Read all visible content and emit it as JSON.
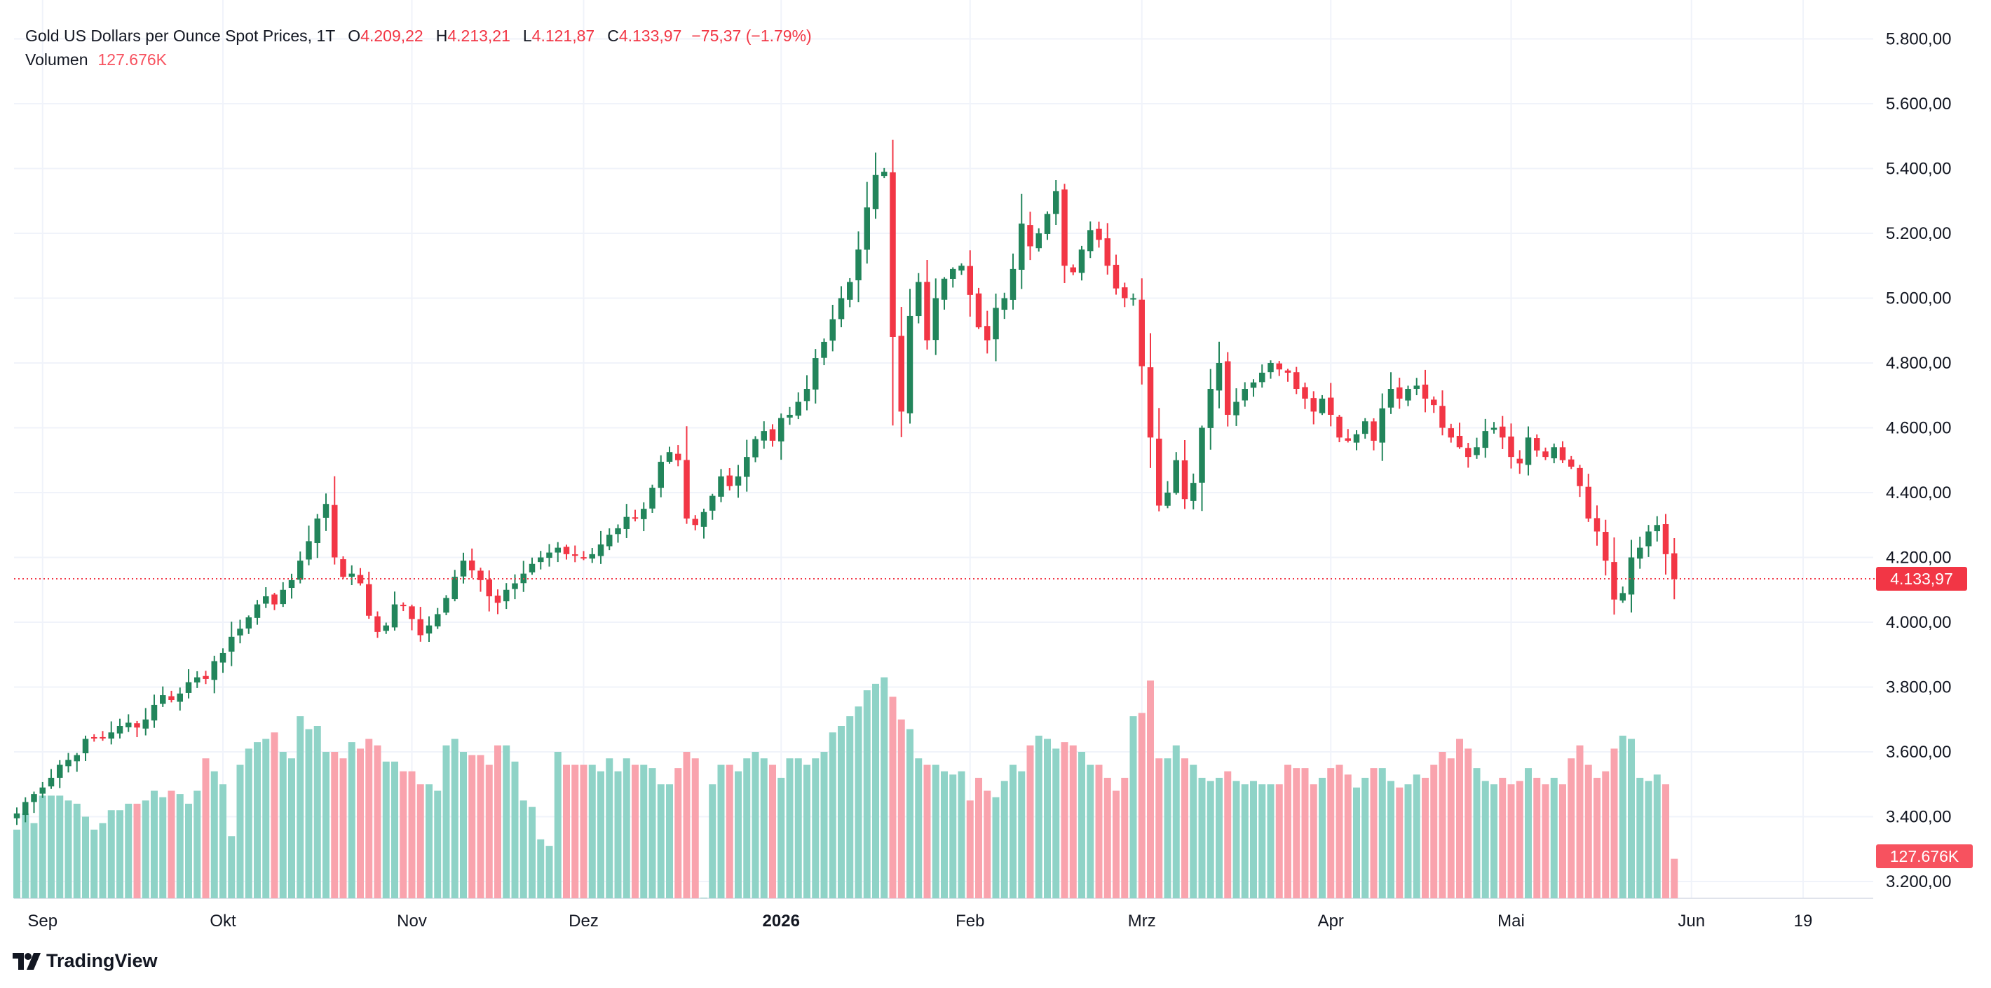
{
  "legend": {
    "symbol": "Gold US Dollars per Ounce Spot Prices, 1T",
    "o_label": "O",
    "o_value": "4.209,22",
    "h_label": "H",
    "h_value": "4.213,21",
    "l_label": "L",
    "l_value": "4.121,87",
    "c_label": "C",
    "c_value": "4.133,97",
    "change": "−75,37 (−1.79%)",
    "volume_label": "Volumen",
    "volume_value": "127.676K"
  },
  "price_badge": "4.133,97",
  "volume_badge": "127.676K",
  "watermark": "TradingView",
  "colors": {
    "up": "#22855B",
    "down": "#F23645",
    "volume_up": "#8FD3C7",
    "volume_down": "#F9A3AD",
    "grid": "#F0F3FA",
    "text": "#131722",
    "price_line": "#F23645"
  },
  "chart_data": {
    "type": "candlestick",
    "title": "Gold US Dollars per Ounce Spot Prices",
    "interval": "1T",
    "y_axis": {
      "range": [
        3150,
        5850
      ],
      "ticks": [
        3200,
        3400,
        3600,
        3800,
        4000,
        4200,
        4400,
        4600,
        4800,
        5000,
        5200,
        5400,
        5600,
        5800
      ],
      "tick_labels": [
        "3.200,00",
        "3.400,00",
        "3.600,00",
        "3.800,00",
        "4.000,00",
        "4.200,00",
        "4.400,00",
        "4.600,00",
        "4.800,00",
        "5.000,00",
        "5.200,00",
        "5.400,00",
        "5.600,00",
        "5.800,00"
      ]
    },
    "x_axis": {
      "labels": [
        {
          "text": "Sep",
          "index": 3,
          "bold": false
        },
        {
          "text": "Okt",
          "index": 24,
          "bold": false
        },
        {
          "text": "Nov",
          "index": 46,
          "bold": false
        },
        {
          "text": "Dez",
          "index": 66,
          "bold": false
        },
        {
          "text": "2026",
          "index": 89,
          "bold": true
        },
        {
          "text": "Feb",
          "index": 111,
          "bold": false
        },
        {
          "text": "Mrz",
          "index": 131,
          "bold": false
        },
        {
          "text": "Apr",
          "index": 153,
          "bold": false
        },
        {
          "text": "Mai",
          "index": 174,
          "bold": false
        },
        {
          "text": "Jun",
          "index": 195,
          "bold": false
        },
        {
          "text": "19",
          "index": 208,
          "bold": false
        }
      ]
    },
    "last_price": 4133.97,
    "closes": [
      3410,
      3445,
      3470,
      3490,
      3520,
      3560,
      3575,
      3590,
      3640,
      3645,
      3645,
      3660,
      3680,
      3690,
      3675,
      3700,
      3745,
      3775,
      3760,
      3780,
      3815,
      3830,
      3825,
      3880,
      3905,
      3955,
      3980,
      4015,
      4055,
      4080,
      4055,
      4100,
      4130,
      4190,
      4250,
      4320,
      4365,
      4200,
      4140,
      4150,
      4120,
      4020,
      3970,
      3990,
      4055,
      4050,
      4010,
      3960,
      3990,
      4025,
      4075,
      4140,
      4190,
      4160,
      4130,
      4080,
      4060,
      4100,
      4120,
      4150,
      4180,
      4200,
      4215,
      4230,
      4210,
      4205,
      4200,
      4210,
      4240,
      4270,
      4290,
      4325,
      4320,
      4350,
      4415,
      4495,
      4525,
      4500,
      4320,
      4300,
      4340,
      4390,
      4450,
      4420,
      4450,
      4510,
      4565,
      4590,
      4560,
      4630,
      4640,
      4680,
      4720,
      4815,
      4865,
      4935,
      5000,
      5050,
      5150,
      5280,
      5380,
      5390,
      4880,
      4650,
      4945,
      5050,
      4870,
      5000,
      5060,
      5090,
      5100,
      5010,
      4910,
      4870,
      4970,
      5000,
      5090,
      5230,
      5160,
      5200,
      5260,
      5330,
      5100,
      5080,
      5150,
      5210,
      5180,
      5100,
      5030,
      5000,
      5000,
      4790,
      4570,
      4360,
      4400,
      4500,
      4380,
      4430,
      4600,
      4720,
      4800,
      4640,
      4680,
      4720,
      4740,
      4770,
      4800,
      4780,
      4770,
      4720,
      4690,
      4650,
      4690,
      4640,
      4570,
      4560,
      4580,
      4620,
      4560,
      4660,
      4720,
      4690,
      4720,
      4730,
      4690,
      4670,
      4600,
      4570,
      4540,
      4510,
      4540,
      4590,
      4600,
      4570,
      4510,
      4490,
      4570,
      4530,
      4510,
      4540,
      4500,
      4480,
      4420,
      4320,
      4280,
      4190,
      4070,
      4090,
      4200,
      4230,
      4280,
      4300,
      4210,
      4134
    ],
    "volumes": [
      3360,
      3410,
      3380,
      3465,
      3465,
      3465,
      3450,
      3440,
      3400,
      3360,
      3380,
      3420,
      3420,
      3440,
      3440,
      3450,
      3480,
      3460,
      3480,
      3470,
      3440,
      3480,
      3580,
      3540,
      3500,
      3340,
      3560,
      3610,
      3630,
      3640,
      3660,
      3600,
      3580,
      3710,
      3670,
      3680,
      3600,
      3600,
      3580,
      3630,
      3610,
      3640,
      3620,
      3570,
      3570,
      3540,
      3540,
      3500,
      3500,
      3480,
      3620,
      3640,
      3600,
      3590,
      3590,
      3560,
      3620,
      3620,
      3570,
      3450,
      3430,
      3330,
      3310,
      3600,
      3560,
      3560,
      3560,
      3560,
      3540,
      3580,
      3540,
      3580,
      3560,
      3560,
      3550,
      3500,
      3500,
      3550,
      3600,
      3580,
      3150,
      3500,
      3560,
      3560,
      3540,
      3580,
      3600,
      3580,
      3560,
      3520,
      3580,
      3580,
      3560,
      3580,
      3600,
      3660,
      3680,
      3710,
      3740,
      3790,
      3810,
      3830,
      3770,
      3700,
      3670,
      3580,
      3560,
      3560,
      3540,
      3530,
      3540,
      3450,
      3520,
      3480,
      3460,
      3510,
      3560,
      3540,
      3620,
      3650,
      3640,
      3610,
      3630,
      3620,
      3600,
      3560,
      3560,
      3520,
      3480,
      3520,
      3710,
      3720,
      3820,
      3580,
      3580,
      3620,
      3580,
      3560,
      3520,
      3510,
      3520,
      3540,
      3510,
      3500,
      3510,
      3500,
      3500,
      3500,
      3560,
      3550,
      3550,
      3500,
      3520,
      3550,
      3560,
      3530,
      3490,
      3520,
      3550,
      3550,
      3510,
      3490,
      3500,
      3530,
      3520,
      3560,
      3600,
      3580,
      3640,
      3610,
      3550,
      3510,
      3500,
      3520,
      3500,
      3510,
      3550,
      3520,
      3500,
      3520,
      3500,
      3580,
      3620,
      3560,
      3520,
      3540,
      3610,
      3650,
      3640,
      3520,
      3510,
      3530,
      3500,
      3270
    ],
    "volume_scale": {
      "baseline_price_units": 3150,
      "note": "volume bars drawn on shared lower panel"
    }
  }
}
